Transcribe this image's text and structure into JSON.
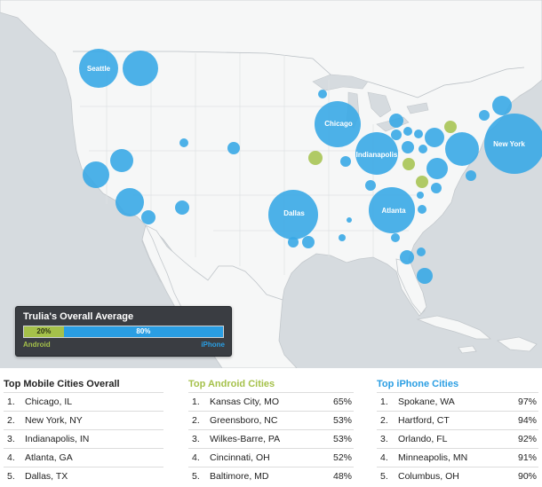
{
  "colors": {
    "iphone": "#3aa8e6",
    "android": "#a9c454",
    "land": "#f6f7f7",
    "water": "#d6dbdf",
    "border": "#b9bfc4"
  },
  "map": {
    "labels": {
      "seattle": "Seattle",
      "chicago": "Chicago",
      "indianapolis": "Indianapolis",
      "new_york": "New York",
      "dallas": "Dallas",
      "atlanta": "Atlanta"
    }
  },
  "legend": {
    "title": "Trulia's Overall Average",
    "android_label": "Android",
    "iphone_label": "iPhone",
    "android_pct": "20%",
    "iphone_pct": "80%",
    "android_share": 0.2,
    "iphone_share": 0.8
  },
  "lists": [
    {
      "title": "Top Mobile Cities Overall",
      "color": "#222222",
      "items": [
        {
          "rank": "1.",
          "city": "Chicago, IL"
        },
        {
          "rank": "2.",
          "city": "New York, NY"
        },
        {
          "rank": "3.",
          "city": "Indianapolis, IN"
        },
        {
          "rank": "4.",
          "city": "Atlanta, GA"
        },
        {
          "rank": "5.",
          "city": "Dallas, TX"
        }
      ]
    },
    {
      "title": "Top Android Cities",
      "color": "#a5c14a",
      "items": [
        {
          "rank": "1.",
          "city": "Kansas City, MO",
          "pct": "65%"
        },
        {
          "rank": "2.",
          "city": "Greensboro, NC",
          "pct": "53%"
        },
        {
          "rank": "3.",
          "city": "Wilkes-Barre, PA",
          "pct": "53%"
        },
        {
          "rank": "4.",
          "city": "Cincinnati, OH",
          "pct": "52%"
        },
        {
          "rank": "5.",
          "city": "Baltimore, MD",
          "pct": "48%"
        }
      ]
    },
    {
      "title": "Top iPhone Cities",
      "color": "#2a9ee3",
      "items": [
        {
          "rank": "1.",
          "city": "Spokane, WA",
          "pct": "97%"
        },
        {
          "rank": "2.",
          "city": "Hartford, CT",
          "pct": "94%"
        },
        {
          "rank": "3.",
          "city": "Orlando, FL",
          "pct": "92%"
        },
        {
          "rank": "4.",
          "city": "Minneapolis, MN",
          "pct": "91%"
        },
        {
          "rank": "5.",
          "city": "Columbus, OH",
          "pct": "90%"
        }
      ]
    }
  ]
}
